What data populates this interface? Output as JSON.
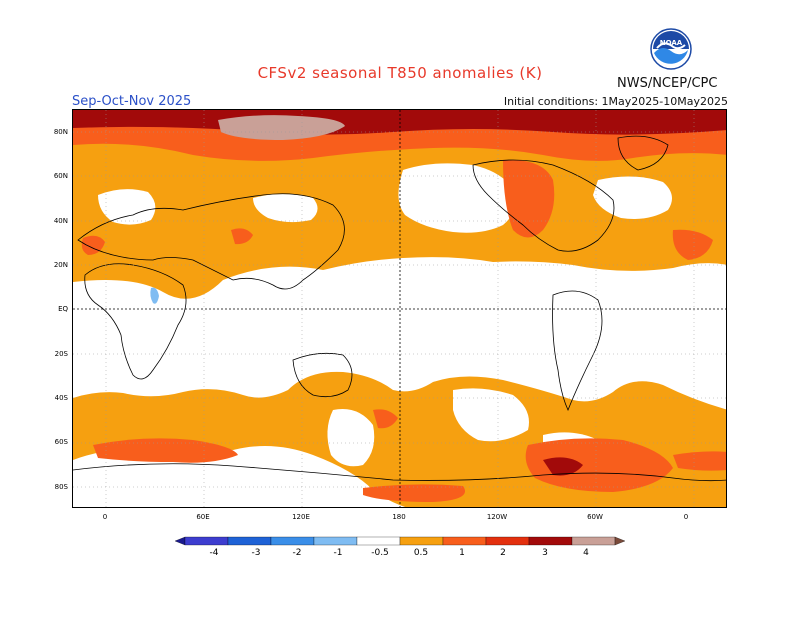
{
  "header": {
    "title": "CFSv2 seasonal T850 anomalies (K)",
    "season": "Sep-Oct-Nov 2025",
    "initial_conditions": "Initial conditions: 1May2025-10May2025",
    "agency": "NWS/NCEP/CPC",
    "logo_text": "NOAA",
    "logo_icon": "noaa-logo-icon"
  },
  "axes": {
    "lat_labels": [
      "80N",
      "60N",
      "40N",
      "20N",
      "EQ",
      "20S",
      "40S",
      "60S",
      "80S"
    ],
    "lon_labels": [
      "0",
      "60E",
      "120E",
      "180",
      "120W",
      "60W",
      "0"
    ]
  },
  "colorbar": {
    "labels": [
      "-4",
      "-3",
      "-2",
      "-1",
      "-0.5",
      "0.5",
      "1",
      "2",
      "3",
      "4"
    ],
    "colors": [
      "#1a1a8f",
      "#3d3dcf",
      "#1e62d6",
      "#3a8ee8",
      "#7fbcf2",
      "#ffffff",
      "#f6a010",
      "#f85e1c",
      "#e3300e",
      "#a20a0a",
      "#c9a097",
      "#7a4a3a"
    ]
  },
  "legend_meaning": {
    "neutral": "#ffffff",
    "warm_1": "#f6a010",
    "warm_2": "#f85e1c",
    "warm_3": "#a20a0a",
    "warm_4": "#c9a097",
    "cool_1": "#7fbcf2"
  }
}
